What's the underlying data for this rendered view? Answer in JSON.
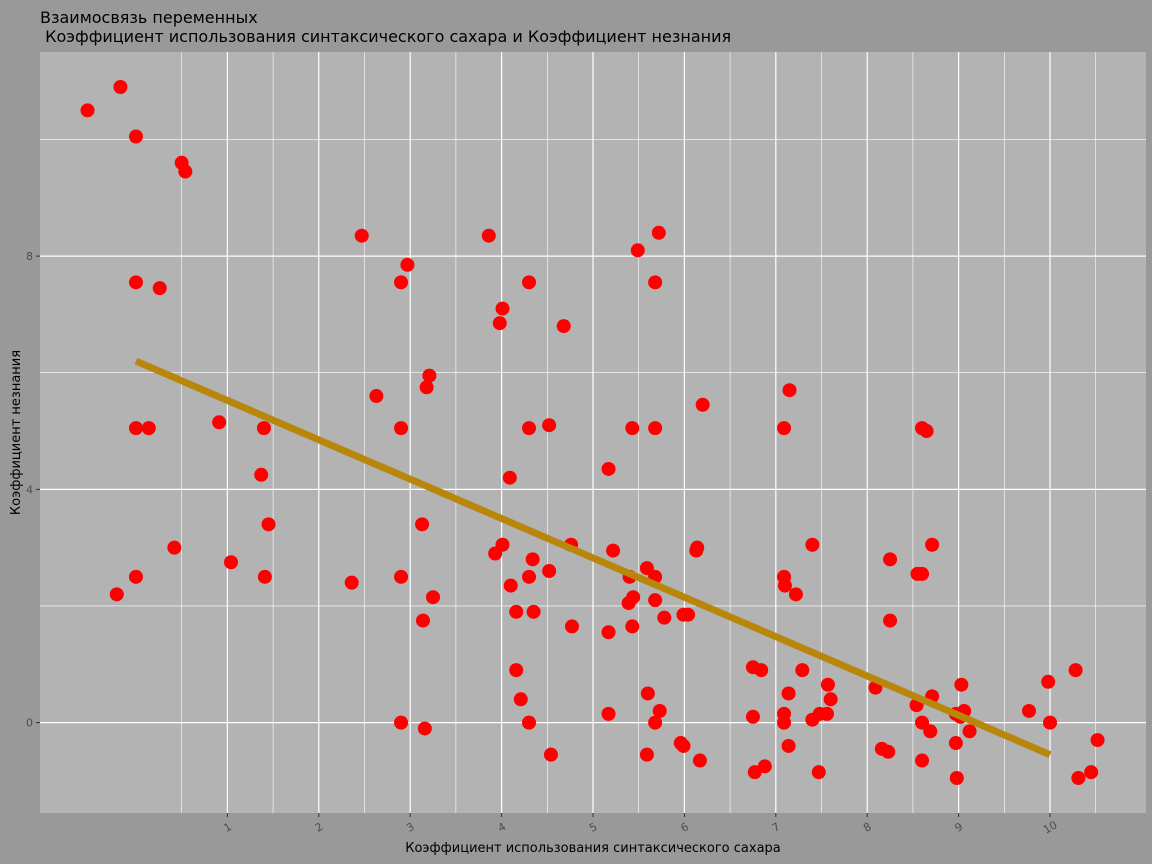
{
  "chart_data": {
    "type": "scatter",
    "title": "Взаимосвязь переменных",
    "subtitle": " Коэффициент использования синтаксического сахара и Коэффициент незнания",
    "xlabel": "Коэффициент использования синтаксического сахара",
    "ylabel": "Коэффициент незнания",
    "xlim": [
      -1.05,
      11.05
    ],
    "ylim": [
      -1.55,
      11.5
    ],
    "x_ticks": [
      1,
      2,
      3,
      4,
      5,
      6,
      7,
      8,
      9,
      10
    ],
    "y_ticks": [
      0,
      4,
      8
    ],
    "grid": true,
    "colors": {
      "background": "#999999",
      "panel": "#b3b3b3",
      "grid": "#ffffff",
      "points": "#ff0000",
      "trend_line": "#b8860b"
    },
    "trend_line": {
      "x": [
        0.0,
        10.0
      ],
      "y": [
        6.2,
        -0.55
      ]
    },
    "points": [
      {
        "x": -0.53,
        "y": 10.5
      },
      {
        "x": -0.17,
        "y": 10.9
      },
      {
        "x": 0.0,
        "y": 10.05
      },
      {
        "x": 0.5,
        "y": 9.6
      },
      {
        "x": 0.54,
        "y": 9.45
      },
      {
        "x": 0.0,
        "y": 7.55
      },
      {
        "x": 0.26,
        "y": 7.45
      },
      {
        "x": 0.0,
        "y": 5.05
      },
      {
        "x": 0.14,
        "y": 5.05
      },
      {
        "x": 0.91,
        "y": 5.15
      },
      {
        "x": 1.4,
        "y": 5.05
      },
      {
        "x": 1.37,
        "y": 4.25
      },
      {
        "x": 1.45,
        "y": 3.4
      },
      {
        "x": 0.42,
        "y": 3.0
      },
      {
        "x": 1.04,
        "y": 2.75
      },
      {
        "x": -0.21,
        "y": 2.2
      },
      {
        "x": 0.0,
        "y": 2.5
      },
      {
        "x": 1.41,
        "y": 2.5
      },
      {
        "x": 2.47,
        "y": 8.35
      },
      {
        "x": 2.97,
        "y": 7.85
      },
      {
        "x": 2.9,
        "y": 7.55
      },
      {
        "x": 2.63,
        "y": 5.6
      },
      {
        "x": 3.21,
        "y": 5.95
      },
      {
        "x": 3.18,
        "y": 5.75
      },
      {
        "x": 2.9,
        "y": 5.05
      },
      {
        "x": 3.13,
        "y": 3.4
      },
      {
        "x": 2.36,
        "y": 2.4
      },
      {
        "x": 2.9,
        "y": 2.5
      },
      {
        "x": 3.25,
        "y": 2.15
      },
      {
        "x": 3.14,
        "y": 1.75
      },
      {
        "x": 2.9,
        "y": 0.0
      },
      {
        "x": 3.16,
        "y": -0.1
      },
      {
        "x": 3.86,
        "y": 8.35
      },
      {
        "x": 4.01,
        "y": 7.1
      },
      {
        "x": 3.98,
        "y": 6.85
      },
      {
        "x": 4.3,
        "y": 7.55
      },
      {
        "x": 4.68,
        "y": 6.8
      },
      {
        "x": 5.49,
        "y": 8.1
      },
      {
        "x": 5.72,
        "y": 8.4
      },
      {
        "x": 5.68,
        "y": 7.55
      },
      {
        "x": 4.09,
        "y": 4.2
      },
      {
        "x": 4.3,
        "y": 5.05
      },
      {
        "x": 4.52,
        "y": 5.1
      },
      {
        "x": 5.43,
        "y": 5.05
      },
      {
        "x": 5.68,
        "y": 5.05
      },
      {
        "x": 5.17,
        "y": 4.35
      },
      {
        "x": 6.2,
        "y": 5.45
      },
      {
        "x": 3.93,
        "y": 2.9
      },
      {
        "x": 4.01,
        "y": 3.05
      },
      {
        "x": 4.34,
        "y": 2.8
      },
      {
        "x": 4.76,
        "y": 3.05
      },
      {
        "x": 5.22,
        "y": 2.95
      },
      {
        "x": 4.1,
        "y": 2.35
      },
      {
        "x": 4.3,
        "y": 2.5
      },
      {
        "x": 4.52,
        "y": 2.6
      },
      {
        "x": 4.16,
        "y": 1.9
      },
      {
        "x": 4.35,
        "y": 1.9
      },
      {
        "x": 4.77,
        "y": 1.65
      },
      {
        "x": 5.17,
        "y": 1.55
      },
      {
        "x": 5.39,
        "y": 2.05
      },
      {
        "x": 5.44,
        "y": 2.15
      },
      {
        "x": 5.43,
        "y": 1.65
      },
      {
        "x": 5.4,
        "y": 2.5
      },
      {
        "x": 5.59,
        "y": 2.65
      },
      {
        "x": 5.68,
        "y": 2.5
      },
      {
        "x": 5.68,
        "y": 2.1
      },
      {
        "x": 5.78,
        "y": 1.8
      },
      {
        "x": 5.99,
        "y": 1.85
      },
      {
        "x": 6.04,
        "y": 1.85
      },
      {
        "x": 6.13,
        "y": 2.95
      },
      {
        "x": 6.14,
        "y": 3.0
      },
      {
        "x": 4.16,
        "y": 0.9
      },
      {
        "x": 4.21,
        "y": 0.4
      },
      {
        "x": 4.3,
        "y": 0.0
      },
      {
        "x": 4.54,
        "y": -0.55
      },
      {
        "x": 5.17,
        "y": 0.15
      },
      {
        "x": 5.6,
        "y": 0.5
      },
      {
        "x": 5.73,
        "y": 0.2
      },
      {
        "x": 5.68,
        "y": 0.0
      },
      {
        "x": 5.59,
        "y": -0.55
      },
      {
        "x": 5.96,
        "y": -0.35
      },
      {
        "x": 5.99,
        "y": -0.4
      },
      {
        "x": 6.17,
        "y": -0.65
      },
      {
        "x": 7.15,
        "y": 5.7
      },
      {
        "x": 7.09,
        "y": 5.05
      },
      {
        "x": 7.4,
        "y": 3.05
      },
      {
        "x": 7.09,
        "y": 2.5
      },
      {
        "x": 7.1,
        "y": 2.35
      },
      {
        "x": 7.22,
        "y": 2.2
      },
      {
        "x": 6.75,
        "y": 0.95
      },
      {
        "x": 6.84,
        "y": 0.9
      },
      {
        "x": 7.29,
        "y": 0.9
      },
      {
        "x": 7.14,
        "y": 0.5
      },
      {
        "x": 6.75,
        "y": 0.1
      },
      {
        "x": 7.09,
        "y": 0.15
      },
      {
        "x": 7.09,
        "y": 0.0
      },
      {
        "x": 7.14,
        "y": -0.4
      },
      {
        "x": 7.4,
        "y": 0.05
      },
      {
        "x": 7.48,
        "y": 0.15
      },
      {
        "x": 7.56,
        "y": 0.15
      },
      {
        "x": 7.57,
        "y": 0.65
      },
      {
        "x": 7.6,
        "y": 0.4
      },
      {
        "x": 6.77,
        "y": -0.85
      },
      {
        "x": 6.88,
        "y": -0.75
      },
      {
        "x": 7.47,
        "y": -0.85
      },
      {
        "x": 8.6,
        "y": 5.05
      },
      {
        "x": 8.65,
        "y": 5.0
      },
      {
        "x": 8.25,
        "y": 2.8
      },
      {
        "x": 8.71,
        "y": 3.05
      },
      {
        "x": 8.55,
        "y": 2.55
      },
      {
        "x": 8.6,
        "y": 2.55
      },
      {
        "x": 8.25,
        "y": 1.75
      },
      {
        "x": 8.09,
        "y": 0.6
      },
      {
        "x": 8.54,
        "y": 0.3
      },
      {
        "x": 8.6,
        "y": 0.0
      },
      {
        "x": 8.69,
        "y": -0.15
      },
      {
        "x": 8.71,
        "y": 0.45
      },
      {
        "x": 8.16,
        "y": -0.45
      },
      {
        "x": 8.23,
        "y": -0.5
      },
      {
        "x": 8.6,
        "y": -0.65
      },
      {
        "x": 8.97,
        "y": 0.15
      },
      {
        "x": 9.03,
        "y": 0.65
      },
      {
        "x": 9.02,
        "y": 0.1
      },
      {
        "x": 9.06,
        "y": 0.2
      },
      {
        "x": 9.12,
        "y": -0.15
      },
      {
        "x": 8.97,
        "y": -0.35
      },
      {
        "x": 8.98,
        "y": -0.95
      },
      {
        "x": 9.77,
        "y": 0.2
      },
      {
        "x": 9.98,
        "y": 0.7
      },
      {
        "x": 10.0,
        "y": 0.0
      },
      {
        "x": 10.28,
        "y": 0.9
      },
      {
        "x": 10.31,
        "y": -0.95
      },
      {
        "x": 10.45,
        "y": -0.85
      },
      {
        "x": 10.52,
        "y": -0.3
      }
    ]
  }
}
